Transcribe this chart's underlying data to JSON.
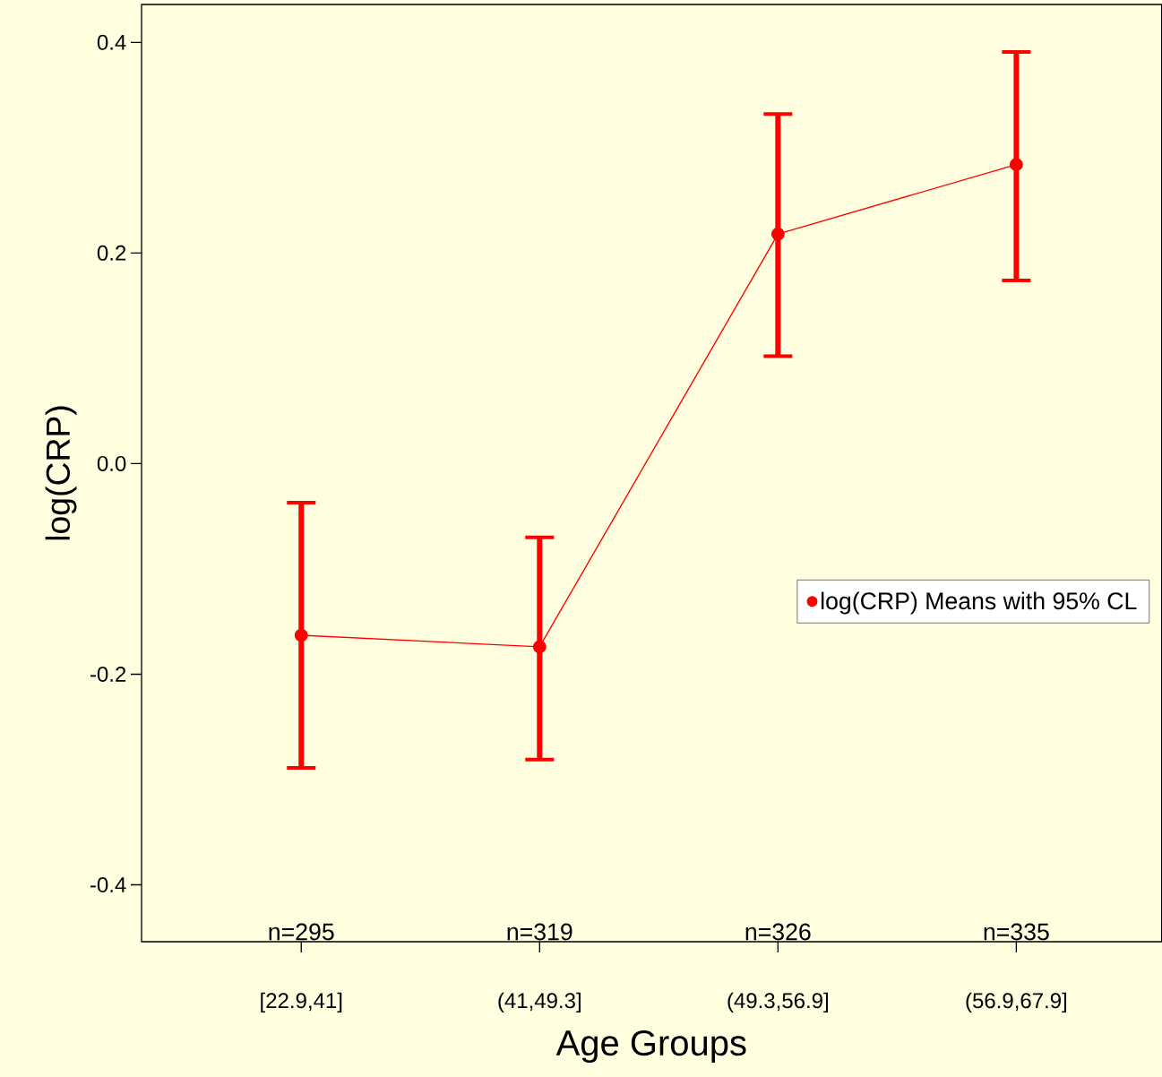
{
  "chart_data": {
    "type": "line",
    "xlabel": "Age Groups",
    "ylabel": "log(CRP)",
    "categories": [
      "[22.9,41]",
      "(41,49.3]",
      "(49.3,56.9]",
      "(56.9,67.9]"
    ],
    "series": [
      {
        "name": "log(CRP) Means with 95% CL",
        "color": "#ff0000",
        "values": [
          -0.163,
          -0.174,
          0.218,
          0.284
        ],
        "errors": [
          [
            -0.289,
            -0.037
          ],
          [
            -0.281,
            -0.07
          ],
          [
            0.102,
            0.332
          ],
          [
            0.174,
            0.391
          ]
        ]
      }
    ],
    "ylim": [
      -0.454,
      0.436
    ],
    "yticks": [
      {
        "value": -0.4,
        "label": "-0.4"
      },
      {
        "value": -0.2,
        "label": "-0.2"
      },
      {
        "value": 0,
        "label": "0.0"
      },
      {
        "value": 0.2,
        "label": "0.2"
      },
      {
        "value": 0.4,
        "label": "0.4"
      }
    ],
    "annotations": [
      "n=295",
      "n=319",
      "n=326",
      "n=335"
    ],
    "legend": "right",
    "marker": "circle",
    "line_style": "solid",
    "grid": false
  }
}
